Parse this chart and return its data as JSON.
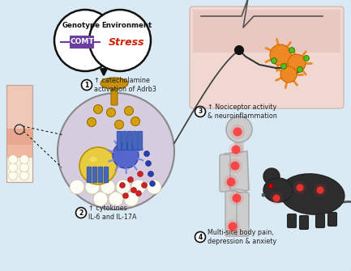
{
  "bg_color": "#daeaf5",
  "border_color": "#9bbdd4",
  "text_color_main": "#222222",
  "text_color_stress": "#cc2200",
  "circle_fill": "#ffffff",
  "circle_edge": "#111111",
  "label1": "↑ catecholamine\nactivation of Adrb3",
  "label2": "↑ cytokines\nIL-6 and IL-17A",
  "label3": "↑ Nociceptor activity\n& neuroinflammation",
  "label4": "Multi-site body pain,\ndepression & anxiety",
  "genotype_text": "Genotype",
  "environment_text": "Environment",
  "comt_text": "COMT",
  "stress_text": "Stress",
  "cell_circle_color": "#d5cce0",
  "comt_purple": "#6b3fa0",
  "ligand_color": "#c8900a",
  "cytokine_red": "#cc2222",
  "cytokine_blue": "#2244aa",
  "pain_spot_color": "#ff3333"
}
